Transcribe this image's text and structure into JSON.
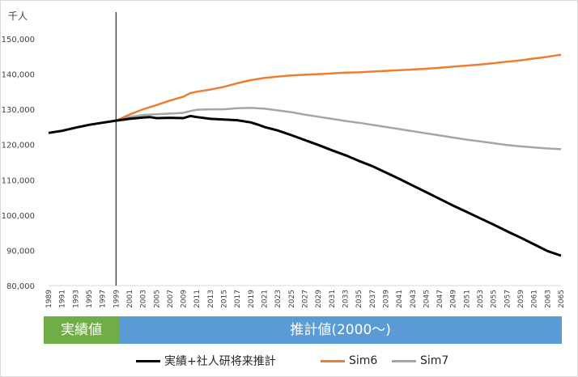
{
  "chart_data": {
    "type": "line",
    "unit_label": "千人",
    "ylim": [
      80000,
      150000
    ],
    "yticks": [
      "80,000",
      "90,000",
      "100,000",
      "110,000",
      "120,000",
      "130,000",
      "140,000",
      "150,000"
    ],
    "x_start": 1989,
    "x_end": 2065,
    "xticks": [
      "1989",
      "1991",
      "1993",
      "1995",
      "1997",
      "1999",
      "2001",
      "2003",
      "2005",
      "2007",
      "2009",
      "2011",
      "2013",
      "2015",
      "2017",
      "2019",
      "2021",
      "2023",
      "2025",
      "2027",
      "2029",
      "2031",
      "2033",
      "2035",
      "2037",
      "2039",
      "2041",
      "2043",
      "2045",
      "2047",
      "2049",
      "2051",
      "2053",
      "2055",
      "2057",
      "2059",
      "2061",
      "2063",
      "2065"
    ],
    "divider_year": 1999,
    "grid": false,
    "legend_position": "bottom",
    "series": [
      {
        "name": "実績+社人研将来推計",
        "color": "#000000",
        "x": [
          1989,
          1991,
          1993,
          1995,
          1997,
          1999,
          2001,
          2003,
          2004,
          2005,
          2007,
          2009,
          2010,
          2011,
          2013,
          2015,
          2017,
          2019,
          2020,
          2021,
          2023,
          2025,
          2027,
          2029,
          2031,
          2033,
          2035,
          2037,
          2039,
          2041,
          2043,
          2045,
          2047,
          2049,
          2051,
          2053,
          2055,
          2057,
          2059,
          2061,
          2063,
          2065
        ],
        "values": [
          123300,
          123900,
          124800,
          125600,
          126200,
          126800,
          127300,
          127700,
          127800,
          127500,
          127600,
          127500,
          128100,
          127800,
          127300,
          127100,
          126900,
          126300,
          125700,
          125000,
          124000,
          122700,
          121300,
          119900,
          118400,
          117000,
          115400,
          113900,
          112100,
          110300,
          108400,
          106500,
          104600,
          102700,
          100900,
          99100,
          97300,
          95400,
          93600,
          91700,
          89800,
          88500
        ]
      },
      {
        "name": "Sim6",
        "color": "#ed7d31",
        "x": [
          1999,
          2001,
          2003,
          2005,
          2007,
          2009,
          2010,
          2011,
          2013,
          2015,
          2017,
          2019,
          2021,
          2023,
          2025,
          2027,
          2029,
          2031,
          2033,
          2035,
          2037,
          2039,
          2041,
          2043,
          2045,
          2047,
          2049,
          2051,
          2053,
          2055,
          2057,
          2059,
          2061,
          2063,
          2065
        ],
        "values": [
          126800,
          128500,
          130000,
          131200,
          132500,
          133600,
          134600,
          135000,
          135600,
          136400,
          137400,
          138300,
          138900,
          139300,
          139600,
          139800,
          140000,
          140200,
          140400,
          140500,
          140700,
          140900,
          141100,
          141300,
          141500,
          141800,
          142100,
          142400,
          142700,
          143100,
          143500,
          143900,
          144400,
          144900,
          145500
        ]
      },
      {
        "name": "Sim7",
        "color": "#a5a5a5",
        "x": [
          1999,
          2001,
          2003,
          2005,
          2007,
          2009,
          2010,
          2011,
          2013,
          2015,
          2017,
          2019,
          2021,
          2023,
          2025,
          2027,
          2029,
          2031,
          2033,
          2035,
          2037,
          2039,
          2041,
          2043,
          2045,
          2047,
          2049,
          2051,
          2053,
          2055,
          2057,
          2059,
          2061,
          2063,
          2065
        ],
        "values": [
          126800,
          127800,
          128400,
          128600,
          128800,
          129000,
          129500,
          129900,
          130000,
          130000,
          130300,
          130400,
          130200,
          129700,
          129200,
          128500,
          127900,
          127300,
          126700,
          126200,
          125600,
          125000,
          124400,
          123800,
          123200,
          122600,
          122000,
          121400,
          120900,
          120400,
          119900,
          119500,
          119200,
          118900,
          118700
        ]
      }
    ]
  },
  "bar": {
    "actual_label": "実績値",
    "forecast_label": "推計値(2000～)",
    "actual_color": "#70ad47",
    "forecast_color": "#5b9bd5"
  }
}
